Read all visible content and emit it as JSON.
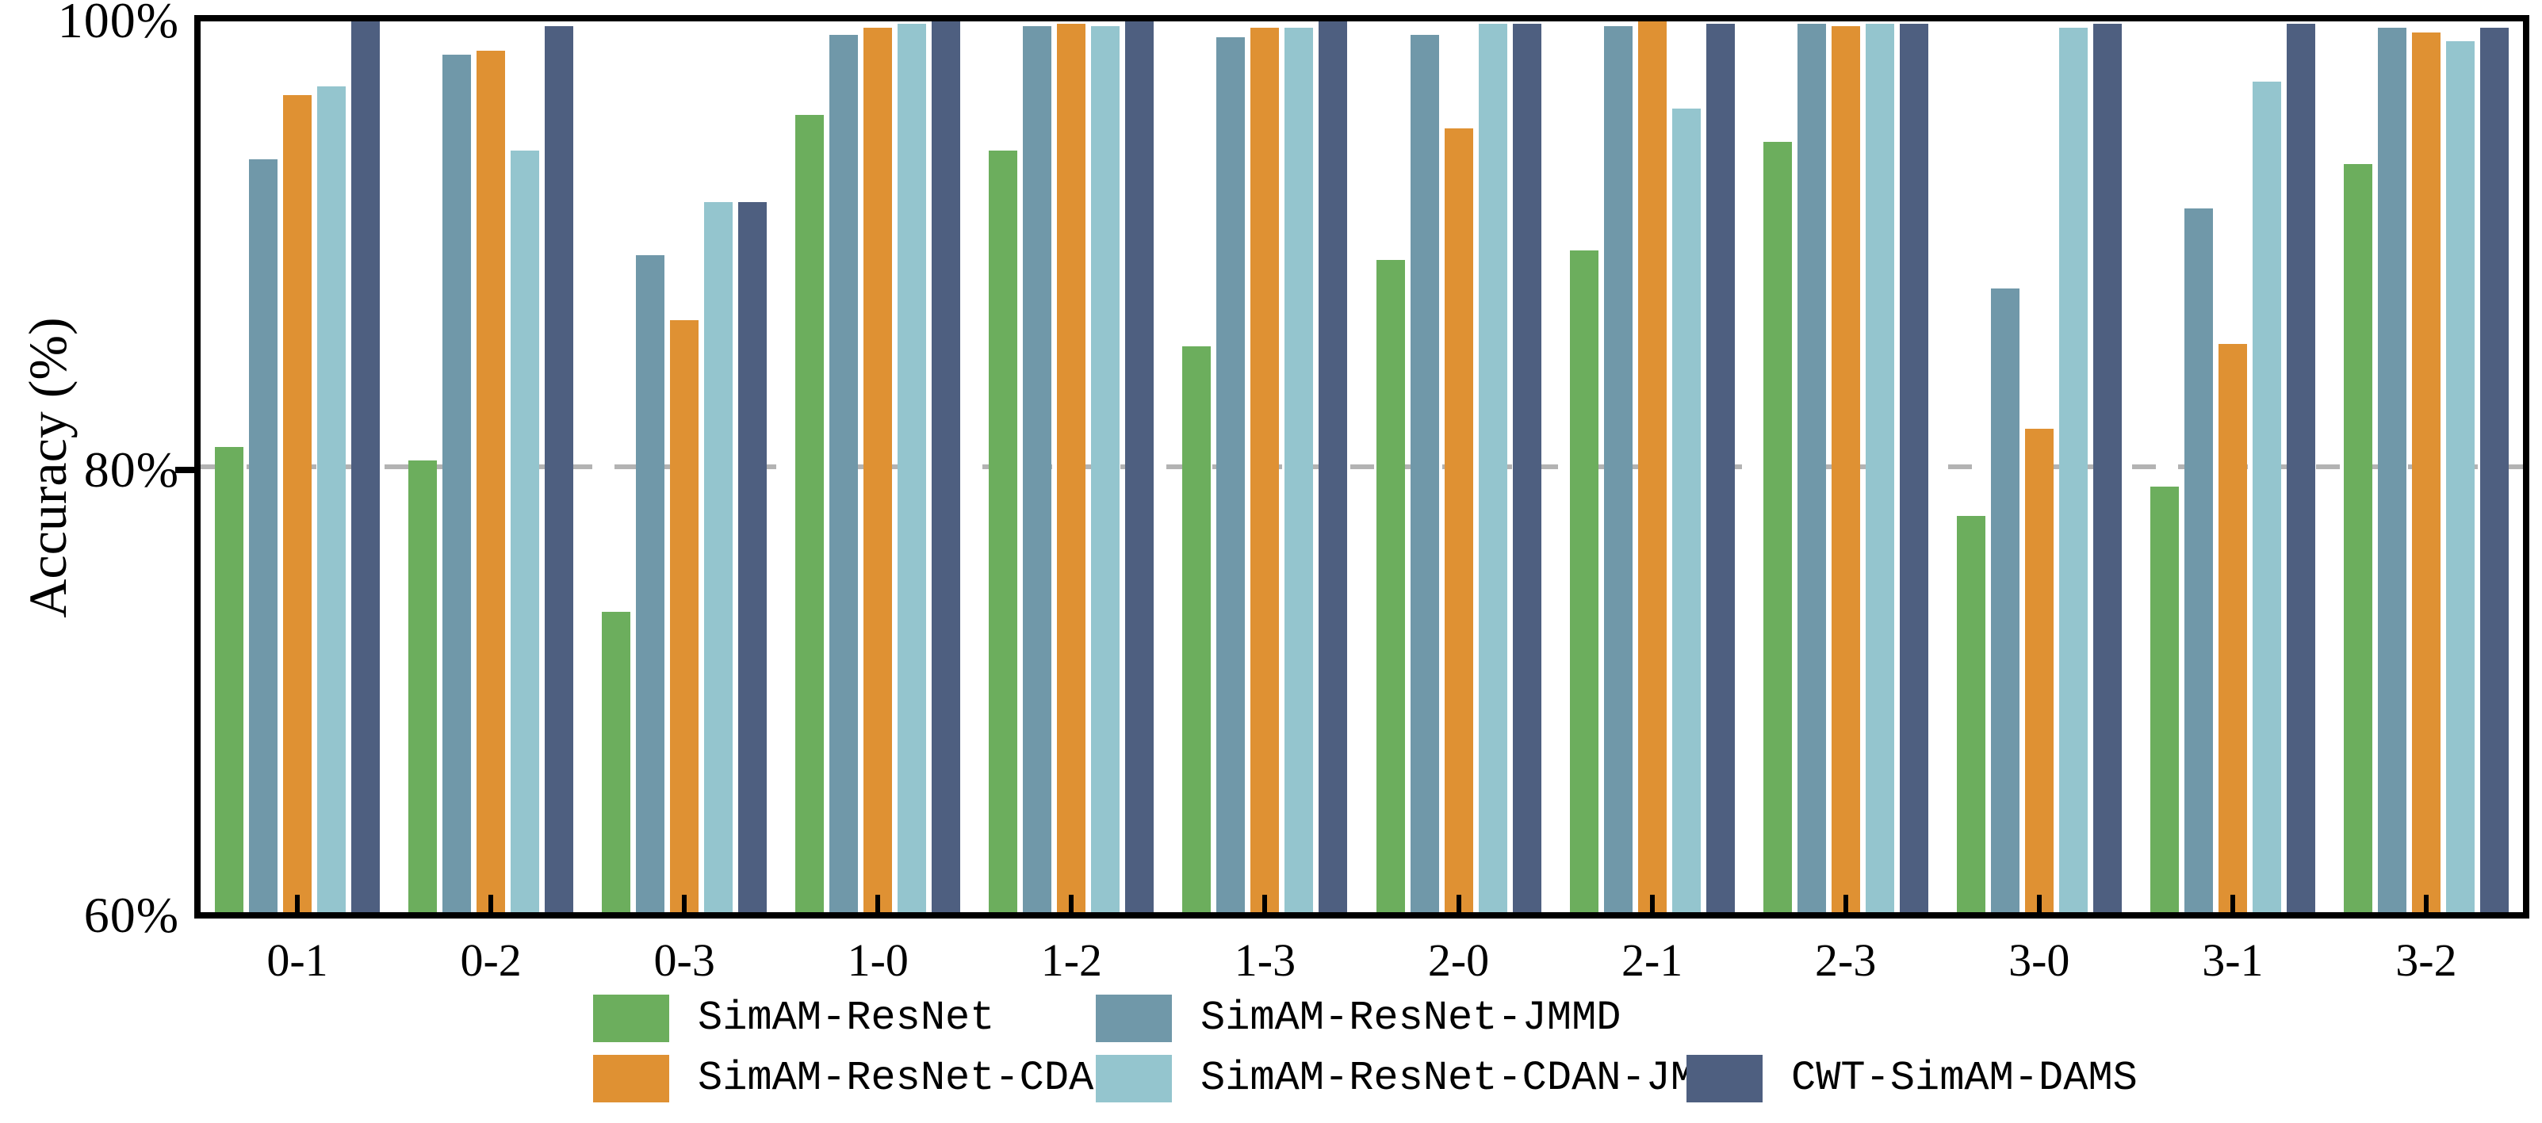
{
  "chart_data": {
    "type": "bar",
    "title": "",
    "xlabel": "",
    "ylabel": "Accuracy (%)",
    "ylim": [
      60,
      100
    ],
    "yticks": [
      {
        "value": 100,
        "label": "100%"
      },
      {
        "value": 80,
        "label": "80%"
      },
      {
        "value": 60,
        "label": "60%"
      }
    ],
    "gridline": {
      "value": 80,
      "style": "dashed",
      "color": "#b3b3b3"
    },
    "grid": "horizontal dashed line at 80% only",
    "legend_position": "bottom",
    "categories": [
      "0-1",
      "0-2",
      "0-3",
      "1-0",
      "1-2",
      "1-3",
      "2-0",
      "2-1",
      "2-3",
      "3-0",
      "3-1",
      "3-2"
    ],
    "series": [
      {
        "name": "SimAM-ResNet",
        "color": "#6cae5d",
        "values": [
          80.9,
          80.3,
          73.5,
          95.8,
          94.2,
          85.4,
          89.3,
          89.7,
          94.6,
          77.8,
          79.1,
          93.6
        ]
      },
      {
        "name": "SimAM-ResNet-JMMD",
        "color": "#7098a9",
        "values": [
          93.8,
          98.5,
          89.5,
          99.4,
          99.8,
          99.3,
          99.4,
          99.8,
          99.9,
          88.0,
          91.6,
          99.7
        ]
      },
      {
        "name": "SimAM-ResNet-CDAN",
        "color": "#df9133",
        "values": [
          96.7,
          98.7,
          86.6,
          99.7,
          99.9,
          99.7,
          95.2,
          100.0,
          99.8,
          81.7,
          85.5,
          99.5
        ]
      },
      {
        "name": "SimAM-ResNet-CDAN-JMMD",
        "color": "#94c5ce",
        "values": [
          97.1,
          94.2,
          91.9,
          99.9,
          99.8,
          99.7,
          99.9,
          96.1,
          99.9,
          99.7,
          97.3,
          99.1
        ]
      },
      {
        "name": "CWT-SimAM-DAMS",
        "color": "#4e5f80",
        "values": [
          100.0,
          99.8,
          91.9,
          100.0,
          100.0,
          100.0,
          99.9,
          99.9,
          99.9,
          99.9,
          99.9,
          99.7
        ]
      }
    ],
    "legend_columns": [
      [
        "SimAM-ResNet",
        "SimAM-ResNet-CDAN"
      ],
      [
        "SimAM-ResNet-JMMD",
        "SimAM-ResNet-CDAN-JMMD"
      ],
      [
        "",
        "CWT-SimAM-DAMS"
      ]
    ],
    "axis_color": "#000000",
    "background_color": "#ffffff"
  }
}
